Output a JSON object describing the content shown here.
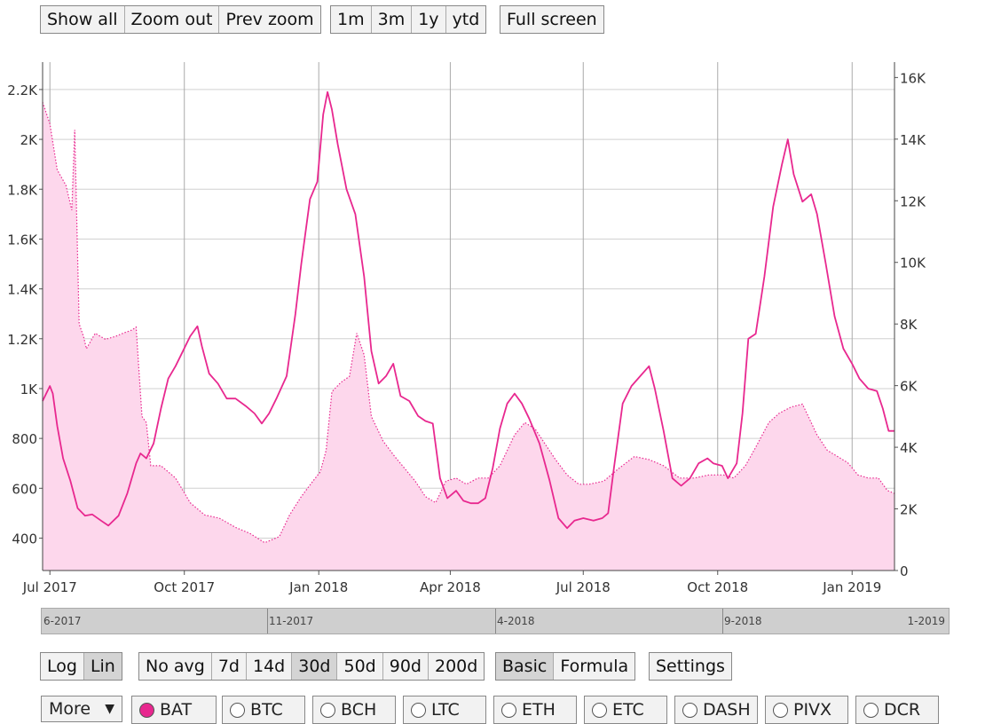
{
  "toolbar_top": {
    "zoom_buttons": [
      "Show all",
      "Zoom out",
      "Prev zoom"
    ],
    "range_buttons": [
      "1m",
      "3m",
      "1y",
      "ytd"
    ],
    "fullscreen_label": "Full screen"
  },
  "toolbar_bottom": {
    "scale_buttons": [
      "Log",
      "Lin"
    ],
    "active_scale": "Lin",
    "avg_buttons": [
      "No avg",
      "7d",
      "14d",
      "30d",
      "50d",
      "90d",
      "200d"
    ],
    "active_avg": "30d",
    "mode_buttons": [
      "Basic",
      "Formula"
    ],
    "active_mode": "Basic",
    "settings_label": "Settings"
  },
  "more_select": {
    "value": "More",
    "arrow": "▼"
  },
  "coins": [
    {
      "label": "BAT",
      "selected": true
    },
    {
      "label": "BTC",
      "selected": false
    },
    {
      "label": "BCH",
      "selected": false
    },
    {
      "label": "LTC",
      "selected": false
    },
    {
      "label": "ETH",
      "selected": false
    },
    {
      "label": "ETC",
      "selected": false
    },
    {
      "label": "DASH",
      "selected": false
    },
    {
      "label": "PIVX",
      "selected": false
    },
    {
      "label": "DCR",
      "selected": false
    }
  ],
  "navigator": {
    "labels": [
      "6-2017",
      "11-2017",
      "4-2018",
      "9-2018",
      "1-2019"
    ]
  },
  "chart_data": {
    "type": "line",
    "colors": {
      "line": "#e8288f",
      "area_fill": "#fdd7ec",
      "area_stroke": "#e8288f"
    },
    "x_ticks": [
      {
        "label": "Jul 2017",
        "date": "2017-07-01"
      },
      {
        "label": "Oct 2017",
        "date": "2017-10-01"
      },
      {
        "label": "Jan 2018",
        "date": "2018-01-01"
      },
      {
        "label": "Apr 2018",
        "date": "2018-04-01"
      },
      {
        "label": "Jul 2018",
        "date": "2018-07-01"
      },
      {
        "label": "Oct 2018",
        "date": "2018-10-01"
      },
      {
        "label": "Jan 2019",
        "date": "2019-01-01"
      }
    ],
    "x_range": [
      "2017-06-26",
      "2019-01-30"
    ],
    "y_left": {
      "ticks": [
        "400",
        "600",
        "800",
        "1K",
        "1.2K",
        "1.4K",
        "1.6K",
        "1.8K",
        "2K",
        "2.2K"
      ],
      "range": [
        270,
        2310
      ]
    },
    "y_right": {
      "ticks": [
        "0",
        "2K",
        "4K",
        "6K",
        "8K",
        "10K",
        "12K",
        "14K",
        "16K"
      ],
      "range": [
        0,
        16500
      ]
    },
    "grid": true,
    "series": [
      {
        "axis": "left",
        "style": "solid line",
        "points": [
          [
            "2017-06-26",
            950
          ],
          [
            "2017-07-01",
            1010
          ],
          [
            "2017-07-03",
            980
          ],
          [
            "2017-07-06",
            850
          ],
          [
            "2017-07-10",
            720
          ],
          [
            "2017-07-15",
            630
          ],
          [
            "2017-07-20",
            520
          ],
          [
            "2017-07-25",
            490
          ],
          [
            "2017-07-30",
            495
          ],
          [
            "2017-08-05",
            470
          ],
          [
            "2017-08-10",
            450
          ],
          [
            "2017-08-17",
            490
          ],
          [
            "2017-08-23",
            580
          ],
          [
            "2017-08-29",
            700
          ],
          [
            "2017-09-01",
            740
          ],
          [
            "2017-09-05",
            720
          ],
          [
            "2017-09-10",
            780
          ],
          [
            "2017-09-15",
            920
          ],
          [
            "2017-09-20",
            1040
          ],
          [
            "2017-09-25",
            1090
          ],
          [
            "2017-09-30",
            1150
          ],
          [
            "2017-10-05",
            1210
          ],
          [
            "2017-10-10",
            1250
          ],
          [
            "2017-10-13",
            1170
          ],
          [
            "2017-10-18",
            1060
          ],
          [
            "2017-10-24",
            1020
          ],
          [
            "2017-10-30",
            960
          ],
          [
            "2017-11-05",
            960
          ],
          [
            "2017-11-12",
            930
          ],
          [
            "2017-11-18",
            900
          ],
          [
            "2017-11-23",
            860
          ],
          [
            "2017-11-28",
            900
          ],
          [
            "2017-12-03",
            960
          ],
          [
            "2017-12-10",
            1050
          ],
          [
            "2017-12-16",
            1300
          ],
          [
            "2017-12-20",
            1500
          ],
          [
            "2017-12-26",
            1760
          ],
          [
            "2017-12-31",
            1830
          ],
          [
            "2018-01-04",
            2100
          ],
          [
            "2018-01-07",
            2190
          ],
          [
            "2018-01-10",
            2120
          ],
          [
            "2018-01-14",
            1980
          ],
          [
            "2018-01-20",
            1800
          ],
          [
            "2018-01-26",
            1700
          ],
          [
            "2018-02-01",
            1450
          ],
          [
            "2018-02-06",
            1150
          ],
          [
            "2018-02-11",
            1020
          ],
          [
            "2018-02-16",
            1050
          ],
          [
            "2018-02-21",
            1100
          ],
          [
            "2018-02-26",
            970
          ],
          [
            "2018-03-04",
            950
          ],
          [
            "2018-03-10",
            890
          ],
          [
            "2018-03-15",
            870
          ],
          [
            "2018-03-20",
            860
          ],
          [
            "2018-03-25",
            640
          ],
          [
            "2018-03-30",
            560
          ],
          [
            "2018-04-05",
            590
          ],
          [
            "2018-04-10",
            550
          ],
          [
            "2018-04-15",
            540
          ],
          [
            "2018-04-20",
            540
          ],
          [
            "2018-04-25",
            560
          ],
          [
            "2018-04-30",
            680
          ],
          [
            "2018-05-05",
            840
          ],
          [
            "2018-05-10",
            940
          ],
          [
            "2018-05-15",
            980
          ],
          [
            "2018-05-20",
            940
          ],
          [
            "2018-05-25",
            880
          ],
          [
            "2018-06-01",
            780
          ],
          [
            "2018-06-08",
            630
          ],
          [
            "2018-06-14",
            480
          ],
          [
            "2018-06-20",
            440
          ],
          [
            "2018-06-25",
            470
          ],
          [
            "2018-07-01",
            480
          ],
          [
            "2018-07-08",
            470
          ],
          [
            "2018-07-14",
            480
          ],
          [
            "2018-07-18",
            500
          ],
          [
            "2018-07-22",
            680
          ],
          [
            "2018-07-28",
            940
          ],
          [
            "2018-08-03",
            1010
          ],
          [
            "2018-08-09",
            1050
          ],
          [
            "2018-08-15",
            1090
          ],
          [
            "2018-08-19",
            1000
          ],
          [
            "2018-08-25",
            830
          ],
          [
            "2018-08-31",
            640
          ],
          [
            "2018-09-06",
            610
          ],
          [
            "2018-09-12",
            640
          ],
          [
            "2018-09-18",
            700
          ],
          [
            "2018-09-24",
            720
          ],
          [
            "2018-09-28",
            700
          ],
          [
            "2018-10-04",
            690
          ],
          [
            "2018-10-08",
            640
          ],
          [
            "2018-10-14",
            700
          ],
          [
            "2018-10-18",
            900
          ],
          [
            "2018-10-22",
            1200
          ],
          [
            "2018-10-27",
            1220
          ],
          [
            "2018-11-02",
            1450
          ],
          [
            "2018-11-08",
            1730
          ],
          [
            "2018-11-14",
            1900
          ],
          [
            "2018-11-18",
            2000
          ],
          [
            "2018-11-22",
            1860
          ],
          [
            "2018-11-28",
            1750
          ],
          [
            "2018-12-04",
            1780
          ],
          [
            "2018-12-08",
            1700
          ],
          [
            "2018-12-14",
            1500
          ],
          [
            "2018-12-20",
            1290
          ],
          [
            "2018-12-26",
            1160
          ],
          [
            "2019-01-01",
            1100
          ],
          [
            "2019-01-06",
            1040
          ],
          [
            "2019-01-12",
            1000
          ],
          [
            "2019-01-18",
            990
          ],
          [
            "2019-01-22",
            920
          ],
          [
            "2019-01-26",
            830
          ],
          [
            "2019-01-30",
            830
          ]
        ]
      },
      {
        "axis": "right",
        "style": "filled area with dotted outline",
        "points": [
          [
            "2017-06-26",
            15200
          ],
          [
            "2017-07-01",
            14500
          ],
          [
            "2017-07-06",
            13000
          ],
          [
            "2017-07-12",
            12500
          ],
          [
            "2017-07-16",
            11700
          ],
          [
            "2017-07-18",
            14300
          ],
          [
            "2017-07-21",
            8000
          ],
          [
            "2017-07-24",
            7600
          ],
          [
            "2017-07-26",
            7200
          ],
          [
            "2017-08-01",
            7700
          ],
          [
            "2017-08-08",
            7500
          ],
          [
            "2017-08-15",
            7600
          ],
          [
            "2017-08-20",
            7700
          ],
          [
            "2017-08-26",
            7800
          ],
          [
            "2017-08-29",
            7900
          ],
          [
            "2017-09-02",
            5000
          ],
          [
            "2017-09-05",
            4800
          ],
          [
            "2017-09-08",
            3400
          ],
          [
            "2017-09-15",
            3400
          ],
          [
            "2017-09-25",
            3000
          ],
          [
            "2017-10-05",
            2200
          ],
          [
            "2017-10-15",
            1800
          ],
          [
            "2017-10-25",
            1700
          ],
          [
            "2017-11-05",
            1400
          ],
          [
            "2017-11-15",
            1200
          ],
          [
            "2017-11-25",
            900
          ],
          [
            "2017-12-05",
            1100
          ],
          [
            "2017-12-12",
            1800
          ],
          [
            "2017-12-20",
            2400
          ],
          [
            "2017-12-28",
            2900
          ],
          [
            "2018-01-02",
            3200
          ],
          [
            "2018-01-06",
            3900
          ],
          [
            "2018-01-10",
            5800
          ],
          [
            "2018-01-16",
            6100
          ],
          [
            "2018-01-22",
            6300
          ],
          [
            "2018-01-27",
            7700
          ],
          [
            "2018-02-01",
            7000
          ],
          [
            "2018-02-06",
            5000
          ],
          [
            "2018-02-14",
            4200
          ],
          [
            "2018-02-22",
            3700
          ],
          [
            "2018-03-01",
            3300
          ],
          [
            "2018-03-08",
            2900
          ],
          [
            "2018-03-15",
            2400
          ],
          [
            "2018-03-22",
            2200
          ],
          [
            "2018-03-29",
            2900
          ],
          [
            "2018-04-05",
            3000
          ],
          [
            "2018-04-12",
            2800
          ],
          [
            "2018-04-20",
            3000
          ],
          [
            "2018-04-27",
            3000
          ],
          [
            "2018-05-05",
            3400
          ],
          [
            "2018-05-15",
            4400
          ],
          [
            "2018-05-22",
            4800
          ],
          [
            "2018-05-29",
            4600
          ],
          [
            "2018-06-05",
            4100
          ],
          [
            "2018-06-12",
            3600
          ],
          [
            "2018-06-20",
            3100
          ],
          [
            "2018-06-28",
            2800
          ],
          [
            "2018-07-05",
            2800
          ],
          [
            "2018-07-15",
            2900
          ],
          [
            "2018-07-25",
            3300
          ],
          [
            "2018-08-05",
            3700
          ],
          [
            "2018-08-15",
            3600
          ],
          [
            "2018-08-25",
            3400
          ],
          [
            "2018-09-05",
            3000
          ],
          [
            "2018-09-15",
            3000
          ],
          [
            "2018-09-25",
            3100
          ],
          [
            "2018-10-05",
            3100
          ],
          [
            "2018-10-12",
            3000
          ],
          [
            "2018-10-20",
            3400
          ],
          [
            "2018-10-27",
            4000
          ],
          [
            "2018-11-05",
            4800
          ],
          [
            "2018-11-12",
            5100
          ],
          [
            "2018-11-20",
            5300
          ],
          [
            "2018-11-28",
            5400
          ],
          [
            "2018-12-03",
            4900
          ],
          [
            "2018-12-08",
            4400
          ],
          [
            "2018-12-15",
            3900
          ],
          [
            "2018-12-22",
            3700
          ],
          [
            "2018-12-29",
            3500
          ],
          [
            "2019-01-05",
            3100
          ],
          [
            "2019-01-12",
            3000
          ],
          [
            "2019-01-19",
            3000
          ],
          [
            "2019-01-25",
            2600
          ],
          [
            "2019-01-30",
            2500
          ]
        ]
      }
    ]
  }
}
